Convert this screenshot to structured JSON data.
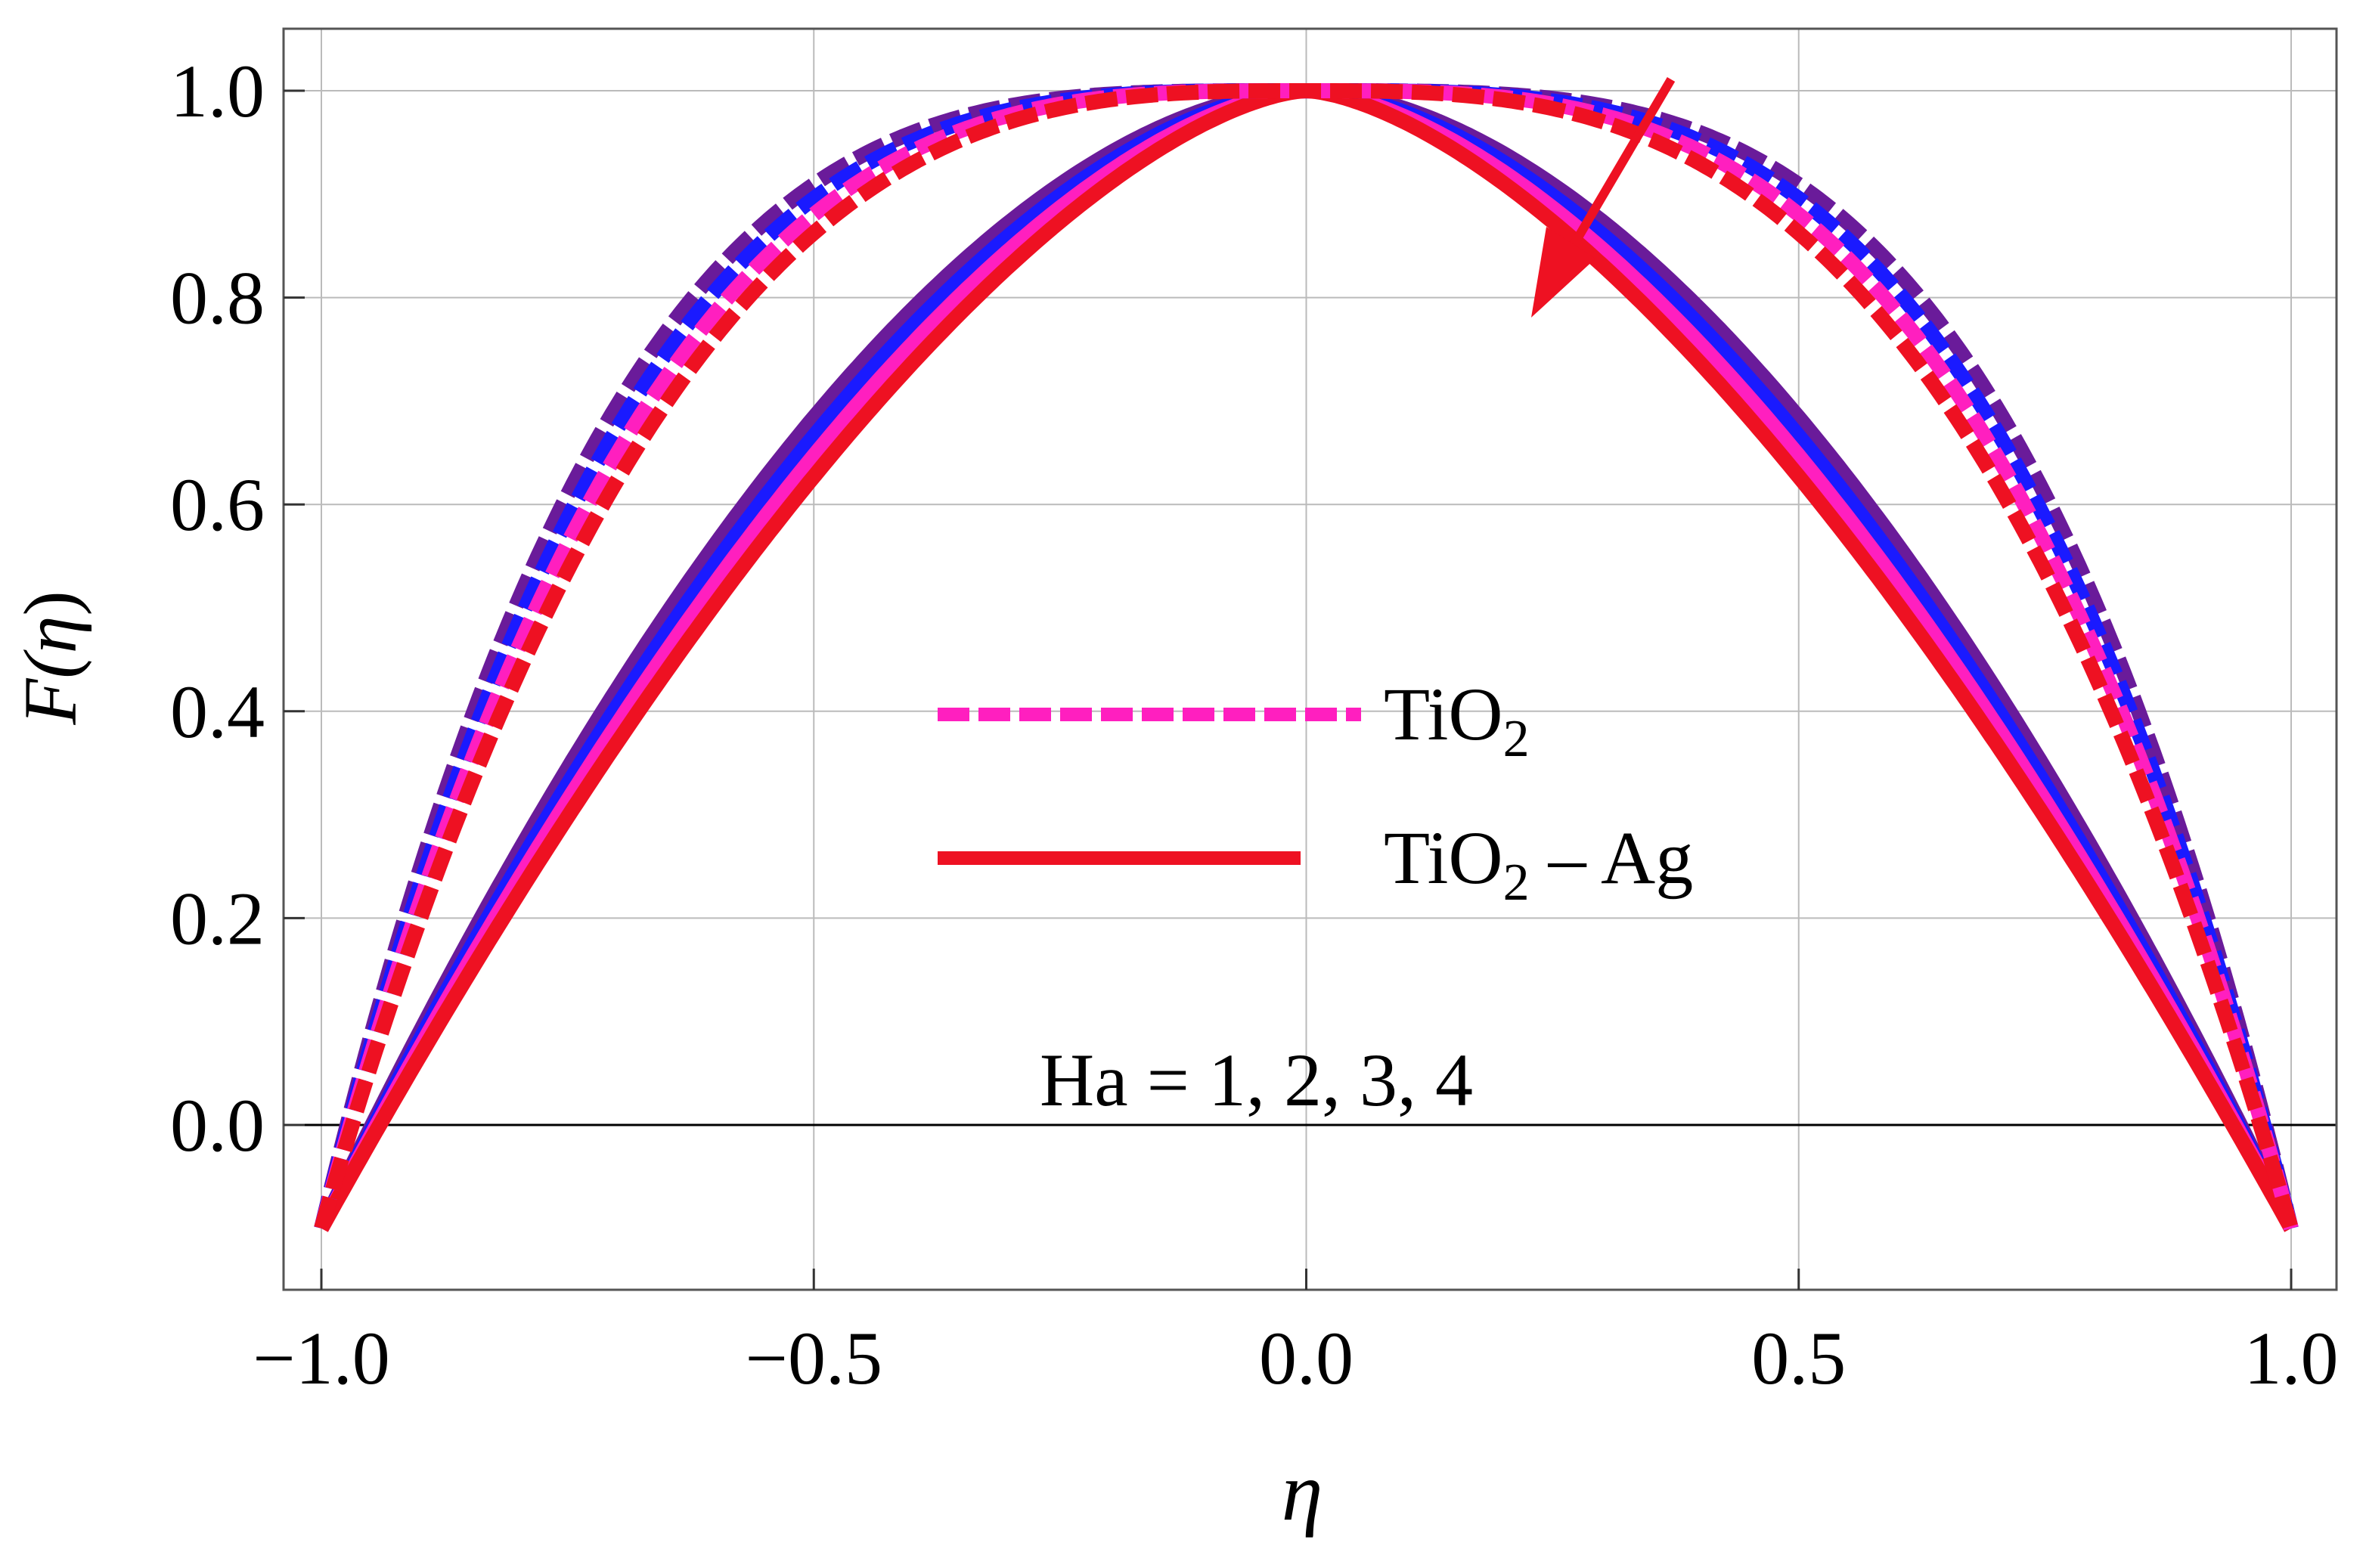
{
  "chart_data": {
    "type": "line",
    "title": "",
    "xlabel": "η",
    "ylabel_main": "F(",
    "ylabel_var": "η",
    "ylabel_close": ")",
    "xlim": [
      -1.0,
      1.0
    ],
    "ylim": [
      -0.16,
      1.06
    ],
    "grid": true,
    "x_ticks": [
      -1.0,
      -0.5,
      0.0,
      0.5,
      1.0
    ],
    "x_tick_labels": [
      "−1.0",
      "−0.5",
      "0.0",
      "0.5",
      "1.0"
    ],
    "y_ticks": [
      0.0,
      0.2,
      0.4,
      0.6,
      0.8,
      1.0
    ],
    "y_tick_labels": [
      "0.0",
      "0.2",
      "0.4",
      "0.6",
      "0.8",
      "1.0"
    ],
    "boundary_value": -0.1,
    "series": [
      {
        "name": "TiO2, Ha = 1",
        "group": "TiO2",
        "style": "dashed",
        "color": "#6a1b9a",
        "p": 3.6
      },
      {
        "name": "TiO2, Ha = 2",
        "group": "TiO2",
        "style": "dashed",
        "color": "#1a1aff",
        "p": 3.4
      },
      {
        "name": "TiO2, Ha = 3",
        "group": "TiO2",
        "style": "dashed",
        "color": "#ff1fbf",
        "p": 3.2
      },
      {
        "name": "TiO2, Ha = 4",
        "group": "TiO2",
        "style": "dashed",
        "color": "#ee1122",
        "p": 3.0
      },
      {
        "name": "TiO2 - Ag, Ha = 1",
        "group": "TiO2 - Ag",
        "style": "solid",
        "color": "#6a1b9a",
        "p": 1.8
      },
      {
        "name": "TiO2 - Ag, Ha = 2",
        "group": "TiO2 - Ag",
        "style": "solid",
        "color": "#1a1aff",
        "p": 1.72
      },
      {
        "name": "TiO2 - Ag, Ha = 3",
        "group": "TiO2 - Ag",
        "style": "solid",
        "color": "#ff1fbf",
        "p": 1.64
      },
      {
        "name": "TiO2 - Ag, Ha = 4",
        "group": "TiO2 - Ag",
        "style": "solid",
        "color": "#ee1122",
        "p": 1.56
      }
    ],
    "legend": {
      "placement": "center",
      "entries": [
        {
          "label_base": "TiO",
          "label_sub": "2",
          "label_rest": "",
          "style": "dashed",
          "color": "#ff1fbf"
        },
        {
          "label_base": "TiO",
          "label_sub": "2",
          "label_rest": " – Ag",
          "style": "solid",
          "color": "#ee1122"
        }
      ]
    },
    "annotation": "Ha = 1, 2, 3, 4",
    "arrow_color": "#ee1122"
  }
}
